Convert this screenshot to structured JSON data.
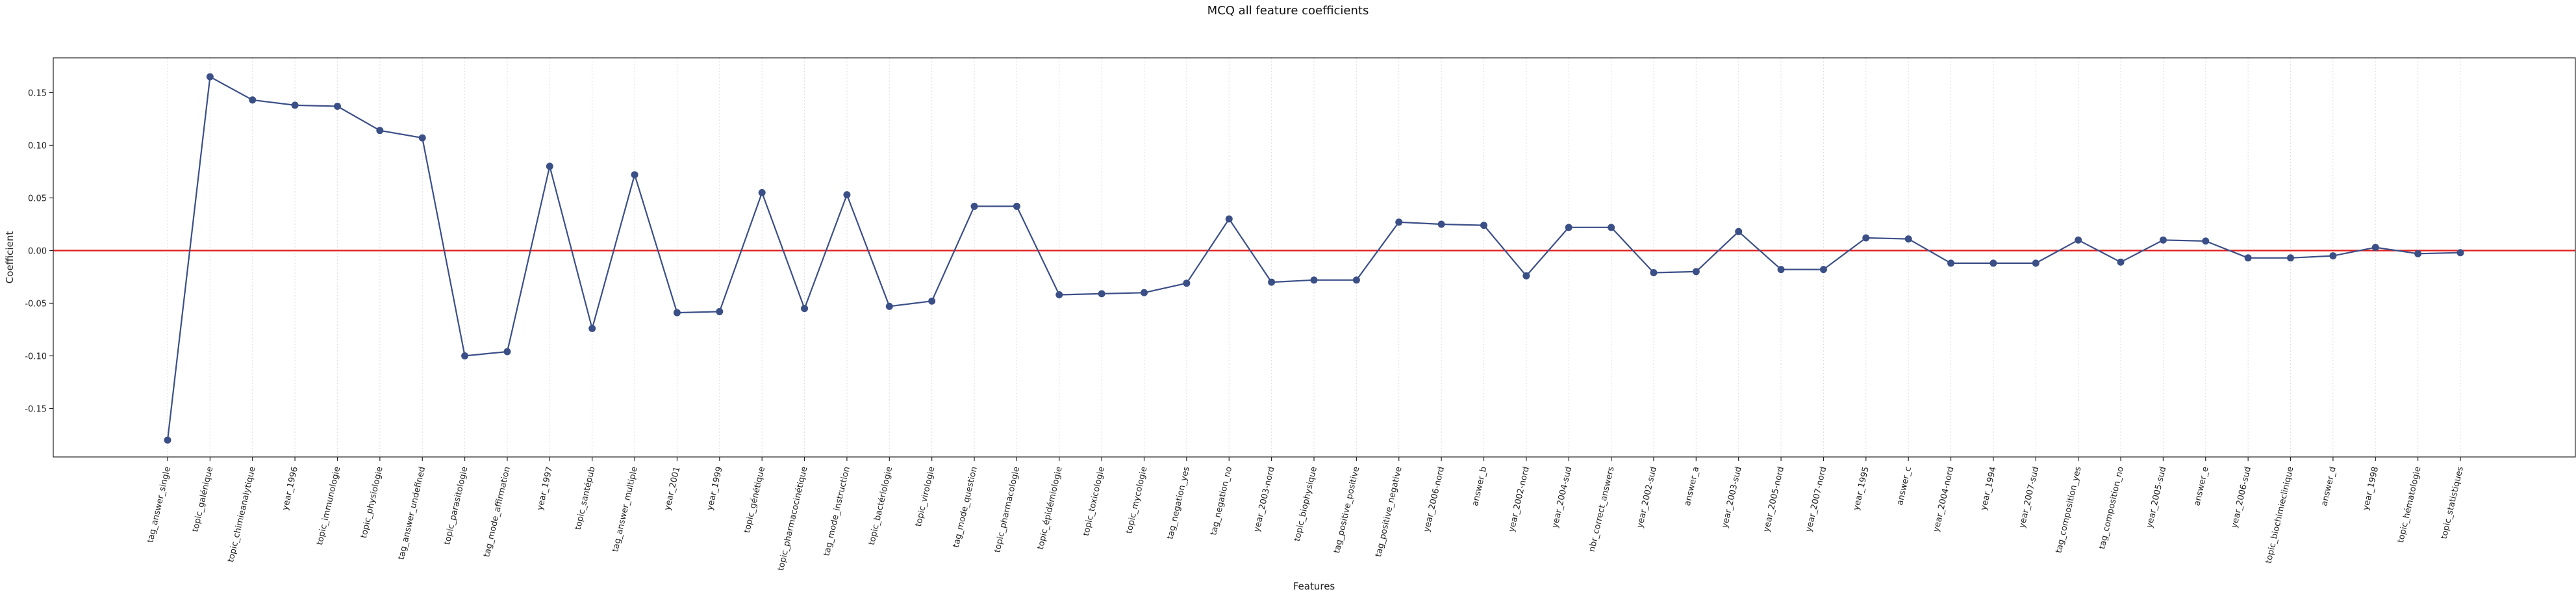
{
  "chart_data": {
    "type": "line",
    "title": "MCQ all feature coefficients",
    "xlabel": "Features",
    "ylabel": "Coefficient",
    "ylim": [
      -0.196,
      0.183
    ],
    "yticks": [
      "-0.15",
      "-0.10",
      "-0.05",
      "0.00",
      "0.05",
      "0.10",
      "0.15"
    ],
    "ytick_values": [
      -0.15,
      -0.1,
      -0.05,
      0.0,
      0.05,
      0.1,
      0.15
    ],
    "grid": "vertical dotted",
    "reference_line": 0.0,
    "colors": {
      "series": "#3b4f87",
      "reference": "#e02020",
      "grid": "#dddddd"
    },
    "categories": [
      "tag_answer_single",
      "topic_galénique",
      "topic_chimieanalytique",
      "year_1996",
      "topic_immunologie",
      "topic_physiologie",
      "tag_answer_undefined",
      "topic_parasitologie",
      "tag_mode_affirmation",
      "year_1997",
      "topic_santépub",
      "tag_answer_multiple",
      "year_2001",
      "year_1999",
      "topic_génétique",
      "topic_pharmacocinétique",
      "tag_mode_instruction",
      "topic_bactériologie",
      "topic_virologie",
      "tag_mode_question",
      "topic_pharmacologie",
      "topic_épidémiologie",
      "topic_toxicologie",
      "topic_mycologie",
      "tag_negation_yes",
      "tag_negation_no",
      "year_2003-nord",
      "topic_biophysique",
      "tag_positive_positive",
      "tag_positive_negative",
      "year_2006-nord",
      "answer_b",
      "year_2002-nord",
      "year_2004-sud",
      "nbr_correct_answers",
      "year_2002-sud",
      "answer_a",
      "year_2003-sud",
      "year_2005-nord",
      "year_2007-nord",
      "year_1995",
      "answer_c",
      "year_2004-nord",
      "year_1994",
      "year_2007-sud",
      "tag_composition_yes",
      "tag_composition_no",
      "year_2005-sud",
      "answer_e",
      "year_2006-sud",
      "topic_biochimieclinique",
      "answer_d",
      "year_1998",
      "topic_hématologie",
      "topic_statistiques"
    ],
    "values": [
      -0.18,
      0.165,
      0.143,
      0.138,
      0.137,
      0.114,
      0.107,
      -0.1,
      -0.096,
      0.08,
      -0.074,
      0.072,
      -0.059,
      -0.058,
      0.055,
      -0.055,
      0.053,
      -0.053,
      -0.048,
      0.042,
      0.042,
      -0.042,
      -0.041,
      -0.04,
      -0.031,
      0.03,
      -0.03,
      -0.028,
      -0.028,
      0.027,
      0.025,
      0.024,
      -0.024,
      0.022,
      0.022,
      -0.021,
      -0.02,
      0.018,
      -0.018,
      -0.018,
      0.012,
      0.011,
      -0.012,
      -0.012,
      -0.012,
      0.01,
      -0.011,
      0.01,
      0.009,
      -0.007,
      -0.007,
      -0.005,
      0.003,
      -0.003,
      -0.002
    ]
  }
}
